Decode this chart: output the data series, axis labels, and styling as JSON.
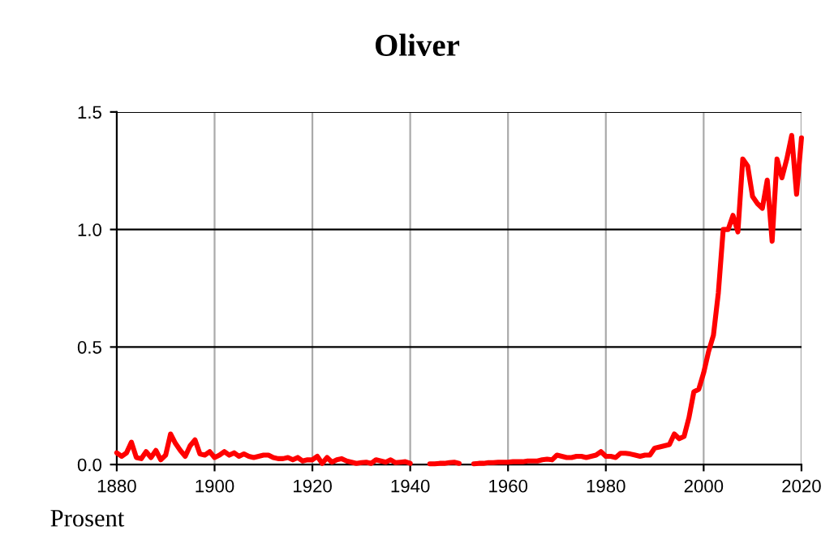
{
  "chart_data": {
    "type": "line",
    "title": "Oliver",
    "annotations": [
      "Prosent"
    ],
    "x": [
      1880,
      1881,
      1882,
      1883,
      1884,
      1885,
      1886,
      1887,
      1888,
      1889,
      1890,
      1891,
      1892,
      1893,
      1894,
      1895,
      1896,
      1897,
      1898,
      1899,
      1900,
      1901,
      1902,
      1903,
      1904,
      1905,
      1906,
      1907,
      1908,
      1909,
      1910,
      1911,
      1912,
      1913,
      1914,
      1915,
      1916,
      1917,
      1918,
      1919,
      1920,
      1921,
      1922,
      1923,
      1924,
      1925,
      1926,
      1927,
      1928,
      1929,
      1930,
      1931,
      1932,
      1933,
      1934,
      1935,
      1936,
      1937,
      1938,
      1939,
      1940,
      1941,
      1942,
      1943,
      1944,
      1945,
      1946,
      1947,
      1948,
      1949,
      1950,
      1951,
      1952,
      1953,
      1954,
      1955,
      1956,
      1957,
      1958,
      1959,
      1960,
      1961,
      1962,
      1963,
      1964,
      1965,
      1966,
      1967,
      1968,
      1969,
      1970,
      1971,
      1972,
      1973,
      1974,
      1975,
      1976,
      1977,
      1978,
      1979,
      1980,
      1981,
      1982,
      1983,
      1984,
      1985,
      1986,
      1987,
      1988,
      1989,
      1990,
      1991,
      1992,
      1993,
      1994,
      1995,
      1996,
      1997,
      1998,
      1999,
      2000,
      2001,
      2002,
      2003,
      2004,
      2005,
      2006,
      2007,
      2008,
      2009,
      2010,
      2011,
      2012,
      2013,
      2014,
      2015,
      2016,
      2017,
      2018,
      2019,
      2020
    ],
    "series": [
      {
        "color": "#ff0000",
        "values": [
          0.05,
          0.035,
          0.05,
          0.095,
          0.03,
          0.025,
          0.055,
          0.03,
          0.06,
          0.02,
          0.04,
          0.13,
          0.09,
          0.06,
          0.035,
          0.08,
          0.105,
          0.045,
          0.04,
          0.055,
          0.03,
          0.04,
          0.055,
          0.04,
          0.05,
          0.035,
          0.045,
          0.035,
          0.03,
          0.035,
          0.04,
          0.04,
          0.03,
          0.025,
          0.025,
          0.03,
          0.02,
          0.03,
          0.015,
          0.02,
          0.02,
          0.035,
          0.005,
          0.03,
          0.01,
          0.02,
          0.025,
          0.015,
          0.01,
          0.005,
          0.008,
          0.01,
          0.005,
          0.02,
          0.015,
          0.01,
          0.02,
          0.008,
          0.01,
          0.012,
          0.005,
          null,
          null,
          null,
          0.003,
          0.003,
          0.005,
          0.005,
          0.008,
          0.01,
          0.005,
          null,
          null,
          0.003,
          0.005,
          0.005,
          0.008,
          0.008,
          0.01,
          0.01,
          0.01,
          0.012,
          0.012,
          0.012,
          0.015,
          0.015,
          0.015,
          0.02,
          0.023,
          0.02,
          0.04,
          0.035,
          0.03,
          0.03,
          0.035,
          0.035,
          0.03,
          0.035,
          0.04,
          0.055,
          0.035,
          0.035,
          0.03,
          0.048,
          0.048,
          0.045,
          0.04,
          0.035,
          0.04,
          0.04,
          0.07,
          0.075,
          0.08,
          0.085,
          0.13,
          0.11,
          0.12,
          0.2,
          0.31,
          0.32,
          0.39,
          0.48,
          0.55,
          0.73,
          1.0,
          1.0,
          1.06,
          0.99,
          1.3,
          1.27,
          1.14,
          1.11,
          1.09,
          1.21,
          0.95,
          1.3,
          1.22,
          1.3,
          1.4,
          1.15,
          1.39
        ]
      }
    ],
    "xlim": [
      1880,
      2020
    ],
    "ylim": [
      0,
      1.5
    ],
    "xticks": [
      1880,
      1900,
      1920,
      1940,
      1960,
      1980,
      2000,
      2020
    ],
    "yticks": [
      {
        "value": 0,
        "label": "0.0"
      },
      {
        "value": 0.5,
        "label": "0.5"
      },
      {
        "value": 1.0,
        "label": "1.0"
      },
      {
        "value": 1.5,
        "label": "1.5"
      }
    ],
    "grid": true,
    "marker": "none",
    "line_style": "solid"
  }
}
